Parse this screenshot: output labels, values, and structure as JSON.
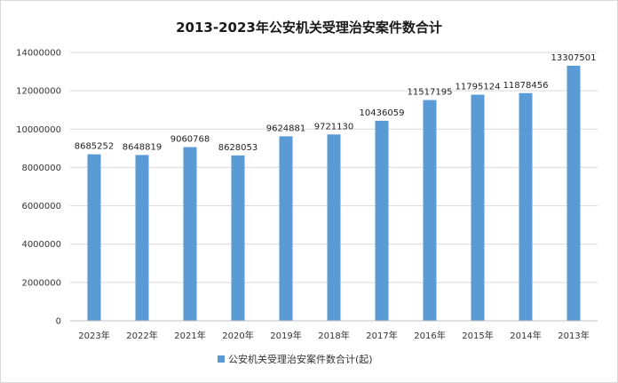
{
  "chart_data": {
    "type": "bar",
    "title": "2013-2023年公安机关受理治安案件数合计",
    "categories": [
      "2023年",
      "2022年",
      "2021年",
      "2020年",
      "2019年",
      "2018年",
      "2017年",
      "2016年",
      "2015年",
      "2014年",
      "2013年"
    ],
    "series": [
      {
        "name": "公安机关受理治安案件数合计(起)",
        "values": [
          8685252,
          8648819,
          9060768,
          8628053,
          9624881,
          9721130,
          10436059,
          11517195,
          11795124,
          11878456,
          13307501
        ],
        "color": "#5b9bd5"
      }
    ],
    "y_ticks": [
      "0",
      "2000000",
      "4000000",
      "6000000",
      "8000000",
      "10000000",
      "12000000",
      "14000000"
    ],
    "ylim": [
      0,
      14000000
    ],
    "grid": true,
    "legend_position": "bottom",
    "data_labels": [
      "8685252",
      "8648819",
      "9060768",
      "8628053",
      "9624881",
      "9721130",
      "10436059",
      "11517195",
      "11795124",
      "11878456",
      "13307501"
    ]
  }
}
